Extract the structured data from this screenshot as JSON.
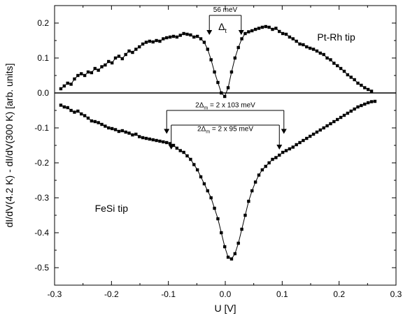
{
  "chart_data": {
    "type": "scatter",
    "title": "",
    "xlabel": "U [V]",
    "ylabel": "dI/dV(4.2 K) - dI/dV(300 K) [arb. units]",
    "xlim": [
      -0.3,
      0.3
    ],
    "ylim": [
      -0.55,
      0.25
    ],
    "xticks": [
      -0.3,
      -0.2,
      -0.1,
      0.0,
      0.1,
      0.2,
      0.3
    ],
    "xtick_labels": [
      "-0.3",
      "-0.2",
      "-0.1",
      "0.0",
      "0.1",
      "0.2",
      "0.3"
    ],
    "yticks": [
      -0.5,
      -0.4,
      -0.3,
      -0.2,
      -0.1,
      0.0,
      0.1,
      0.2
    ],
    "ytick_labels": [
      "-0.5",
      "-0.4",
      "-0.3",
      "-0.2",
      "-0.1",
      "0.0",
      "0.1",
      "0.2"
    ],
    "grid": false,
    "zero_line": 0.0,
    "series": [
      {
        "name": "Pt-Rh tip",
        "marker": "square",
        "line": true,
        "x": [
          -0.289,
          -0.283,
          -0.277,
          -0.271,
          -0.265,
          -0.259,
          -0.253,
          -0.247,
          -0.241,
          -0.235,
          -0.229,
          -0.223,
          -0.217,
          -0.211,
          -0.205,
          -0.199,
          -0.193,
          -0.187,
          -0.181,
          -0.175,
          -0.169,
          -0.163,
          -0.157,
          -0.151,
          -0.145,
          -0.139,
          -0.133,
          -0.127,
          -0.121,
          -0.115,
          -0.109,
          -0.103,
          -0.097,
          -0.091,
          -0.085,
          -0.079,
          -0.073,
          -0.067,
          -0.061,
          -0.055,
          -0.049,
          -0.043,
          -0.037,
          -0.031,
          -0.025,
          -0.019,
          -0.013,
          -0.007,
          -0.001,
          0.005,
          0.011,
          0.017,
          0.023,
          0.029,
          0.035,
          0.041,
          0.047,
          0.053,
          0.059,
          0.065,
          0.071,
          0.077,
          0.083,
          0.089,
          0.095,
          0.101,
          0.107,
          0.113,
          0.119,
          0.125,
          0.131,
          0.137,
          0.143,
          0.149,
          0.155,
          0.161,
          0.167,
          0.173,
          0.179,
          0.185,
          0.191,
          0.197,
          0.203,
          0.209,
          0.215,
          0.221,
          0.227,
          0.233,
          0.239,
          0.245,
          0.251,
          0.257
        ],
        "y": [
          0.012,
          0.02,
          0.028,
          0.025,
          0.04,
          0.05,
          0.055,
          0.05,
          0.06,
          0.058,
          0.07,
          0.065,
          0.075,
          0.08,
          0.09,
          0.086,
          0.1,
          0.105,
          0.098,
          0.11,
          0.12,
          0.116,
          0.125,
          0.132,
          0.14,
          0.145,
          0.148,
          0.146,
          0.15,
          0.148,
          0.155,
          0.158,
          0.16,
          0.162,
          0.16,
          0.165,
          0.17,
          0.168,
          0.166,
          0.16,
          0.162,
          0.155,
          0.145,
          0.125,
          0.095,
          0.06,
          0.03,
          0.0,
          -0.01,
          0.015,
          0.06,
          0.1,
          0.13,
          0.155,
          0.17,
          0.175,
          0.178,
          0.182,
          0.185,
          0.188,
          0.19,
          0.188,
          0.182,
          0.185,
          0.176,
          0.17,
          0.168,
          0.16,
          0.155,
          0.148,
          0.14,
          0.138,
          0.132,
          0.128,
          0.125,
          0.12,
          0.114,
          0.11,
          0.1,
          0.095,
          0.085,
          0.078,
          0.07,
          0.062,
          0.052,
          0.045,
          0.038,
          0.028,
          0.022,
          0.015,
          0.01,
          0.005
        ]
      },
      {
        "name": "FeSi tip",
        "marker": "square",
        "line": true,
        "x": [
          -0.289,
          -0.283,
          -0.277,
          -0.271,
          -0.265,
          -0.259,
          -0.253,
          -0.247,
          -0.241,
          -0.235,
          -0.229,
          -0.223,
          -0.217,
          -0.211,
          -0.205,
          -0.199,
          -0.193,
          -0.187,
          -0.181,
          -0.175,
          -0.169,
          -0.163,
          -0.157,
          -0.151,
          -0.145,
          -0.139,
          -0.133,
          -0.127,
          -0.121,
          -0.115,
          -0.109,
          -0.103,
          -0.097,
          -0.091,
          -0.085,
          -0.079,
          -0.073,
          -0.067,
          -0.061,
          -0.055,
          -0.049,
          -0.043,
          -0.037,
          -0.031,
          -0.025,
          -0.019,
          -0.013,
          -0.007,
          -0.001,
          0.005,
          0.011,
          0.017,
          0.023,
          0.029,
          0.035,
          0.041,
          0.047,
          0.053,
          0.059,
          0.065,
          0.071,
          0.077,
          0.083,
          0.089,
          0.095,
          0.101,
          0.107,
          0.113,
          0.119,
          0.125,
          0.131,
          0.137,
          0.143,
          0.149,
          0.155,
          0.161,
          0.167,
          0.173,
          0.179,
          0.185,
          0.191,
          0.197,
          0.203,
          0.209,
          0.215,
          0.221,
          0.227,
          0.233,
          0.239,
          0.245,
          0.251,
          0.257,
          0.263
        ],
        "y": [
          -0.035,
          -0.04,
          -0.042,
          -0.05,
          -0.055,
          -0.052,
          -0.06,
          -0.065,
          -0.072,
          -0.08,
          -0.082,
          -0.085,
          -0.09,
          -0.095,
          -0.1,
          -0.102,
          -0.105,
          -0.11,
          -0.108,
          -0.112,
          -0.115,
          -0.12,
          -0.118,
          -0.125,
          -0.128,
          -0.13,
          -0.132,
          -0.134,
          -0.136,
          -0.138,
          -0.14,
          -0.142,
          -0.145,
          -0.15,
          -0.158,
          -0.165,
          -0.17,
          -0.18,
          -0.19,
          -0.205,
          -0.22,
          -0.24,
          -0.26,
          -0.28,
          -0.3,
          -0.33,
          -0.36,
          -0.4,
          -0.44,
          -0.47,
          -0.475,
          -0.46,
          -0.43,
          -0.39,
          -0.35,
          -0.31,
          -0.28,
          -0.255,
          -0.235,
          -0.22,
          -0.21,
          -0.2,
          -0.19,
          -0.185,
          -0.178,
          -0.17,
          -0.165,
          -0.16,
          -0.155,
          -0.148,
          -0.142,
          -0.136,
          -0.13,
          -0.124,
          -0.118,
          -0.112,
          -0.106,
          -0.1,
          -0.094,
          -0.088,
          -0.082,
          -0.076,
          -0.07,
          -0.064,
          -0.058,
          -0.052,
          -0.046,
          -0.04,
          -0.036,
          -0.032,
          -0.028,
          -0.025,
          -0.024
        ]
      }
    ],
    "annotations": [
      {
        "id": "delta-t",
        "text": "56 meV",
        "x1": -0.028,
        "x2": 0.028,
        "y_bar": 0.222,
        "y_arrow_end": 0.168,
        "label_x": 0.0,
        "label_y": 0.228
      },
      {
        "id": "delta-m-103",
        "text": "2Δm = 2 x 103 meV",
        "x1": -0.103,
        "x2": 0.103,
        "y_bar": -0.05,
        "y_arrow_end": -0.115,
        "label_x": 0.0,
        "label_y": -0.045
      },
      {
        "id": "delta-m-95",
        "text": "2Δm = 2 x 95 meV",
        "x1": -0.095,
        "x2": 0.095,
        "y_bar": -0.092,
        "y_arrow_end": -0.16,
        "label_x": 0.0,
        "label_y": -0.113
      }
    ],
    "delta_t_label": {
      "main": "Δ",
      "sub": "t",
      "x": 0.0,
      "y": 0.19
    },
    "series_labels": [
      {
        "text": "Pt-Rh tip",
        "x": 0.195,
        "y": 0.15
      },
      {
        "text": "FeSi tip",
        "x": -0.2,
        "y": -0.34
      }
    ]
  }
}
